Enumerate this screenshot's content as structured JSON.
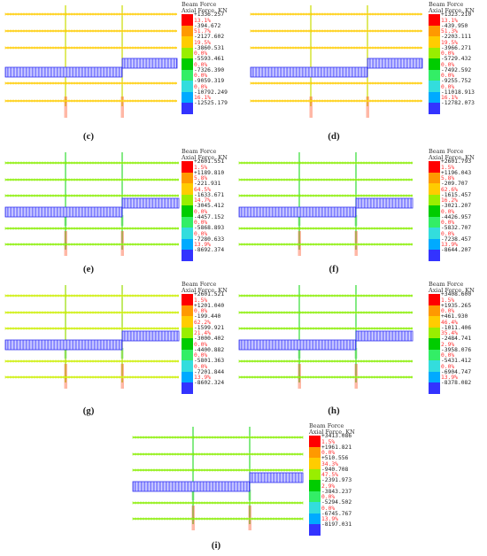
{
  "legend_title_1": "Beam Force",
  "legend_title_2": "Axial Force, KN",
  "colors": [
    "#ff0000",
    "#ff9900",
    "#ffcc00",
    "#99ee00",
    "#00cc00",
    "#33ee66",
    "#33dddd",
    "#00aaff",
    "#3333ff"
  ],
  "panels": [
    {
      "caption": "(c)",
      "values": [
        "+1336.257",
        "-394.672",
        "-2127.602",
        "-3860.531",
        "-5593.461",
        "-7326.390",
        "-9059.319",
        "-10792.249",
        "-12525.179"
      ],
      "percents": [
        "13.1%",
        "51.7%",
        "19.5%",
        "0.0%",
        "0.0%",
        "0.0%",
        "0.0%",
        "16.1%"
      ],
      "beam_color": "#ffcc00",
      "col_color": "#ccdd00"
    },
    {
      "caption": "(d)",
      "values": [
        "+1323.210",
        "-439.950",
        "-2203.111",
        "-3966.271",
        "-5729.432",
        "-7492.592",
        "-9255.752",
        "-11018.913",
        "-12782.073"
      ],
      "percents": [
        "13.1%",
        "51.3%",
        "19.5%",
        "0.0%",
        "0.0%",
        "0.0%",
        "0.0%",
        "16.1%"
      ],
      "beam_color": "#ffcc00",
      "col_color": "#ccdd00"
    },
    {
      "caption": "(e)",
      "values": [
        "+2601.551",
        "+1189.810",
        "-221.931",
        "-1633.671",
        "-3045.412",
        "-4457.152",
        "-5868.893",
        "-7280.633",
        "-8692.374"
      ],
      "percents": [
        "1.5%",
        "5.8%",
        "64.5%",
        "14.7%",
        "0.0%",
        "0.0%",
        "0.0%",
        "13.9%"
      ],
      "beam_color": "#88ee00",
      "col_color": "#33dd33"
    },
    {
      "caption": "(f)",
      "values": [
        "+2601.793",
        "+1196.043",
        "-209.707",
        "-1615.457",
        "-3021.207",
        "-4426.957",
        "-5832.707",
        "-7238.457",
        "-8644.207"
      ],
      "percents": [
        "1.5%",
        "5.8%",
        "62.6%",
        "16.2%",
        "0.0%",
        "0.0%",
        "0.0%",
        "13.9%"
      ],
      "beam_color": "#88ee00",
      "col_color": "#33dd33"
    },
    {
      "caption": "(g)",
      "values": [
        "+2601.521",
        "+1201.040",
        "-199.440",
        "-1599.921",
        "-3000.402",
        "-4400.882",
        "-5801.363",
        "-7201.844",
        "-8602.324"
      ],
      "percents": [
        "1.5%",
        "0.0%",
        "62.2%",
        "21.4%",
        "0.0%",
        "0.0%",
        "0.0%",
        "13.9%"
      ],
      "beam_color": "#ccee00",
      "col_color": "#99dd00"
    },
    {
      "caption": "(h)",
      "values": [
        "+3408.600",
        "+1935.265",
        "+461.930",
        "-1011.406",
        "-2484.741",
        "-3958.076",
        "-5431.412",
        "-6904.747",
        "-8378.082"
      ],
      "percents": [
        "1.5%",
        "0.0%",
        "46.4%",
        "35.4%",
        "2.9%",
        "0.0%",
        "0.0%",
        "13.9%"
      ],
      "beam_color": "#88ee00",
      "col_color": "#33dd33"
    },
    {
      "caption": "(i)",
      "values": [
        "+3413.086",
        "+1961.821",
        "+510.556",
        "-940.708",
        "-2391.973",
        "-3843.237",
        "-5294.502",
        "-6745.767",
        "-8197.031"
      ],
      "percents": [
        "1.5%",
        "0.0%",
        "34.3%",
        "47.5%",
        "2.9%",
        "0.0%",
        "0.0%",
        "13.9%"
      ],
      "beam_color": "#88ee00",
      "col_color": "#33dd33"
    }
  ]
}
